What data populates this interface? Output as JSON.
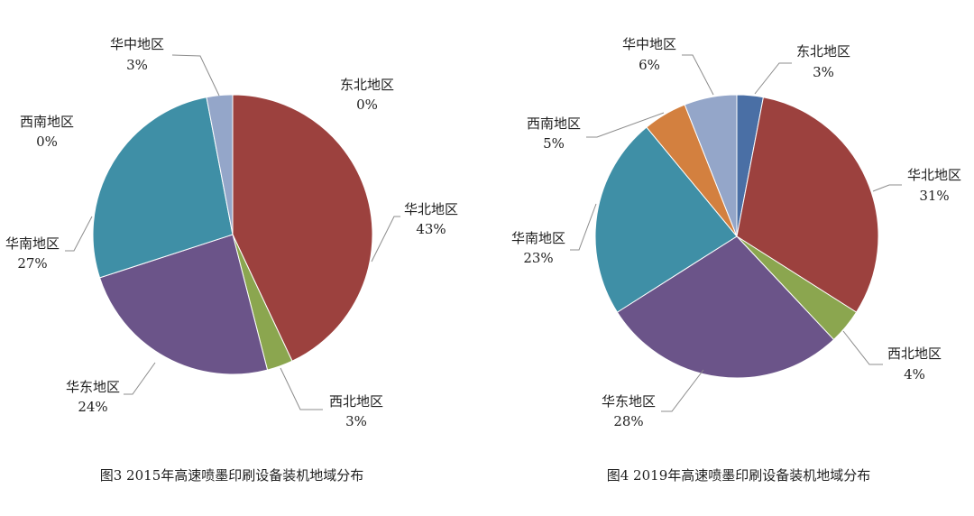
{
  "chart_data": [
    {
      "type": "pie",
      "caption": "图3 2015年高速喷墨印刷设备装机地域分布",
      "categories": [
        "东北地区",
        "华北地区",
        "西北地区",
        "华东地区",
        "华南地区",
        "西南地区",
        "华中地区"
      ],
      "values": [
        0,
        43,
        3,
        24,
        27,
        0,
        3
      ],
      "unit": "%",
      "colors": [
        "#4A6FA5",
        "#9C413E",
        "#8BA64F",
        "#6B5489",
        "#3F8FA6",
        "#D3803F",
        "#94A6C9"
      ]
    },
    {
      "type": "pie",
      "caption": "图4 2019年高速喷墨印刷设备装机地域分布",
      "categories": [
        "东北地区",
        "华北地区",
        "西北地区",
        "华东地区",
        "华南地区",
        "西南地区",
        "华中地区"
      ],
      "values": [
        3,
        31,
        4,
        28,
        23,
        5,
        6
      ],
      "unit": "%",
      "colors": [
        "#4A6FA5",
        "#9C413E",
        "#8BA64F",
        "#6B5489",
        "#3F8FA6",
        "#D3803F",
        "#94A6C9"
      ]
    }
  ]
}
